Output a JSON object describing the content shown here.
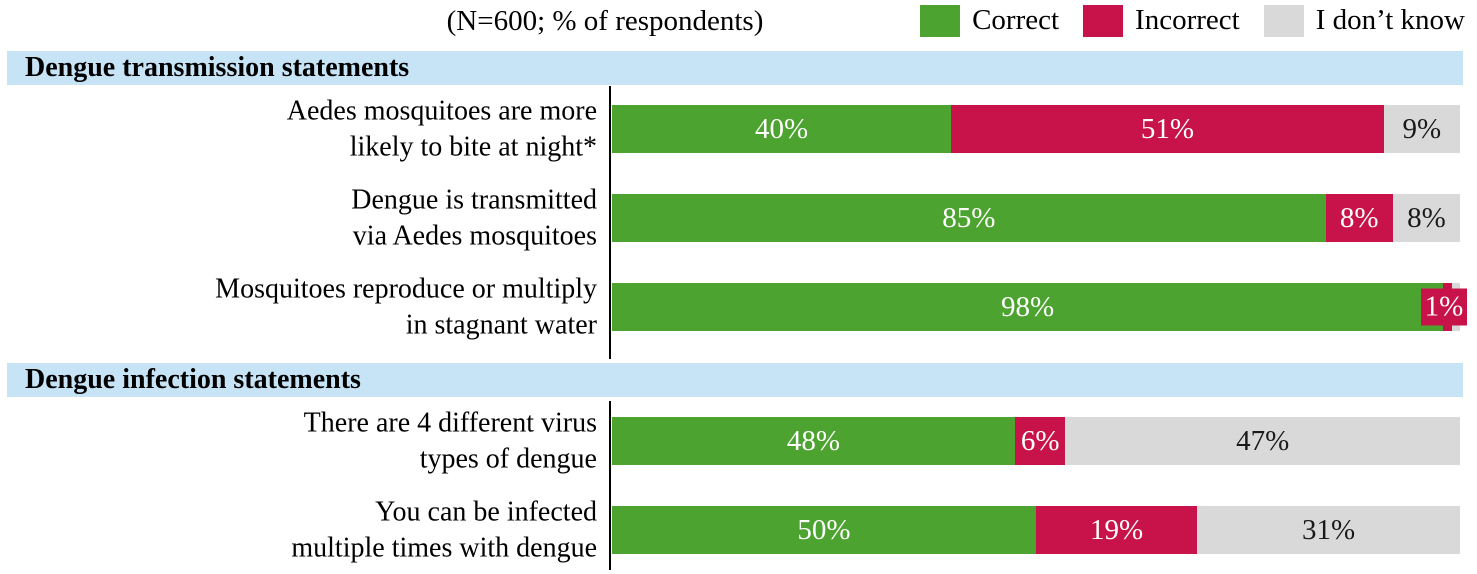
{
  "title": "(N=600; % of respondents)",
  "colors": {
    "correct": "#4da32f",
    "incorrect": "#c8134a",
    "dont_know": "#d9d9d9",
    "section_band": "#c6e4f6",
    "axis": "#000000"
  },
  "legend": {
    "items": [
      {
        "key": "correct",
        "label": "Correct",
        "color": "#4da32f"
      },
      {
        "key": "incorrect",
        "label": "Incorrect",
        "color": "#c8134a"
      },
      {
        "key": "dont-know",
        "label": "I don’t know",
        "color": "#d9d9d9"
      }
    ]
  },
  "sections": [
    {
      "header": "Dengue transmission statements",
      "rows": [
        {
          "label_lines": [
            "Aedes mosquitoes are more",
            "likely to bite at night*"
          ],
          "values": [
            40,
            51,
            9
          ],
          "segment_labels": [
            "40%",
            "51%",
            "9%"
          ]
        },
        {
          "label_lines": [
            "Dengue is transmitted",
            "via Aedes mosquitoes"
          ],
          "values": [
            85,
            8,
            8
          ],
          "segment_labels": [
            "85%",
            "8%",
            "8%"
          ]
        },
        {
          "label_lines": [
            "Mosquitoes reproduce or multiply",
            "in stagnant water"
          ],
          "values": [
            98,
            1,
            1
          ],
          "segment_labels": [
            "98%",
            "",
            ""
          ],
          "callout": {
            "series": "Incorrect",
            "label": "1%"
          }
        }
      ]
    },
    {
      "header": "Dengue infection statements",
      "rows": [
        {
          "label_lines": [
            "There are 4 different virus",
            "types of dengue"
          ],
          "values": [
            48,
            6,
            47
          ],
          "segment_labels": [
            "48%",
            "6%",
            "47%"
          ]
        },
        {
          "label_lines": [
            "You can be infected",
            "multiple times with dengue"
          ],
          "values": [
            50,
            19,
            31
          ],
          "segment_labels": [
            "50%",
            "19%",
            "31%"
          ]
        }
      ]
    }
  ],
  "chart_data": {
    "type": "bar",
    "subtype": "stacked-horizontal",
    "title": "(N=600; % of respondents)",
    "unit": "%",
    "xlim": [
      0,
      100
    ],
    "legend_position": "top-right",
    "grid": false,
    "categories": [
      "Aedes mosquitoes are more likely to bite at night*",
      "Dengue is transmitted via Aedes mosquitoes",
      "Mosquitoes reproduce or multiply in stagnant water",
      "There are 4 different virus types of dengue",
      "You can be infected multiple times with dengue"
    ],
    "category_groups": [
      {
        "header": "Dengue transmission statements",
        "category_indices": [
          0,
          1,
          2
        ]
      },
      {
        "header": "Dengue infection statements",
        "category_indices": [
          3,
          4
        ]
      }
    ],
    "series": [
      {
        "name": "Correct",
        "color": "#4da32f",
        "values": [
          40,
          85,
          98,
          48,
          50
        ]
      },
      {
        "name": "Incorrect",
        "color": "#c8134a",
        "values": [
          51,
          8,
          1,
          6,
          19
        ]
      },
      {
        "name": "I don’t know",
        "color": "#d9d9d9",
        "values": [
          9,
          8,
          1,
          47,
          31
        ]
      }
    ],
    "value_labels_hidden": [
      "row 3 'I don’t know' segment (~1%) has no visible label; its 1% Incorrect value is shown as a red callout box"
    ]
  }
}
